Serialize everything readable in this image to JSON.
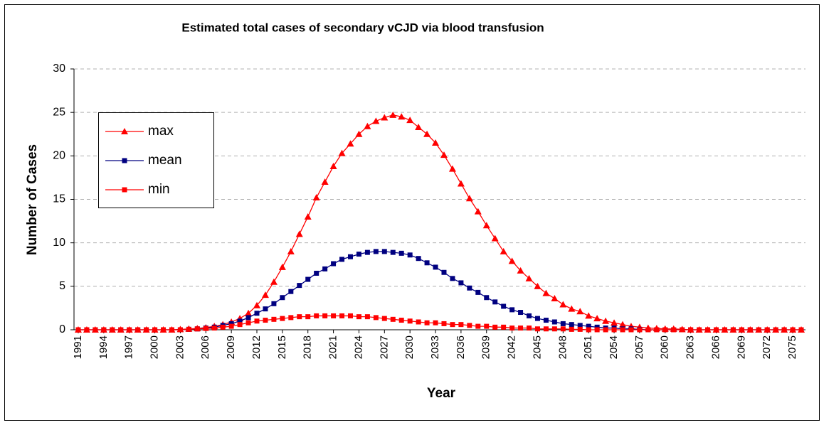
{
  "chart_data": {
    "type": "line",
    "title": "Estimated total cases of secondary vCJD via blood transfusion",
    "x_label": "Year",
    "y_label": "Number of Cases",
    "x": [
      1991,
      1992,
      1993,
      1994,
      1995,
      1996,
      1997,
      1998,
      1999,
      2000,
      2001,
      2002,
      2003,
      2004,
      2005,
      2006,
      2007,
      2008,
      2009,
      2010,
      2011,
      2012,
      2013,
      2014,
      2015,
      2016,
      2017,
      2018,
      2019,
      2020,
      2021,
      2022,
      2023,
      2024,
      2025,
      2026,
      2027,
      2028,
      2029,
      2030,
      2031,
      2032,
      2033,
      2034,
      2035,
      2036,
      2037,
      2038,
      2039,
      2040,
      2041,
      2042,
      2043,
      2044,
      2045,
      2046,
      2047,
      2048,
      2049,
      2050,
      2051,
      2052,
      2053,
      2054,
      2055,
      2056,
      2057,
      2058,
      2059,
      2060,
      2061,
      2062,
      2063,
      2064,
      2065,
      2066,
      2067,
      2068,
      2069,
      2070,
      2071,
      2072,
      2073,
      2074,
      2075,
      2076
    ],
    "xlim": [
      1990.5,
      2076.5
    ],
    "xticks": [
      1991,
      1994,
      1997,
      2000,
      2003,
      2006,
      2009,
      2012,
      2015,
      2018,
      2021,
      2024,
      2027,
      2030,
      2033,
      2036,
      2039,
      2042,
      2045,
      2048,
      2051,
      2054,
      2057,
      2060,
      2063,
      2066,
      2069,
      2072,
      2075
    ],
    "ylim": [
      0,
      30
    ],
    "yticks": [
      0,
      5,
      10,
      15,
      20,
      25,
      30
    ],
    "grid": true,
    "legend": "upper left",
    "series": [
      {
        "name": "max",
        "color": "#ff0000",
        "marker": "triangle",
        "values": [
          0,
          0,
          0,
          0,
          0,
          0,
          0,
          0,
          0,
          0,
          0,
          0,
          0.05,
          0.1,
          0.15,
          0.25,
          0.4,
          0.6,
          0.9,
          1.3,
          1.9,
          2.8,
          4,
          5.5,
          7.2,
          9,
          11,
          13,
          15.2,
          17,
          18.8,
          20.3,
          21.4,
          22.5,
          23.4,
          24,
          24.4,
          24.7,
          24.5,
          24.1,
          23.3,
          22.5,
          21.5,
          20.1,
          18.5,
          16.8,
          15.1,
          13.6,
          12,
          10.5,
          9,
          7.9,
          6.8,
          5.9,
          5,
          4.2,
          3.6,
          2.9,
          2.4,
          2.1,
          1.6,
          1.3,
          1.0,
          0.8,
          0.6,
          0.4,
          0.3,
          0.2,
          0.15,
          0.1,
          0.1,
          0.05,
          0,
          0,
          0,
          0,
          0,
          0,
          0,
          0,
          0,
          0,
          0,
          0,
          0,
          0
        ]
      },
      {
        "name": "mean",
        "color": "#000080",
        "marker": "square",
        "values": [
          0,
          0,
          0,
          0,
          0,
          0,
          0,
          0,
          0,
          0,
          0,
          0,
          0,
          0.05,
          0.1,
          0.2,
          0.3,
          0.5,
          0.7,
          1.0,
          1.4,
          1.9,
          2.4,
          3.0,
          3.7,
          4.4,
          5.1,
          5.8,
          6.5,
          7.0,
          7.6,
          8.1,
          8.4,
          8.7,
          8.9,
          9.0,
          9.0,
          8.9,
          8.8,
          8.6,
          8.2,
          7.7,
          7.2,
          6.6,
          5.9,
          5.4,
          4.8,
          4.3,
          3.7,
          3.2,
          2.7,
          2.3,
          2.0,
          1.6,
          1.3,
          1.1,
          0.9,
          0.7,
          0.6,
          0.5,
          0.4,
          0.3,
          0.2,
          0.2,
          0.1,
          0.1,
          0.05,
          0,
          0,
          0,
          0,
          0,
          0,
          0,
          0,
          0,
          0,
          0,
          0,
          0,
          0,
          0,
          0,
          0,
          0,
          0
        ]
      },
      {
        "name": "min",
        "color": "#ff0000",
        "marker": "square",
        "values": [
          0,
          0,
          0,
          0,
          0,
          0,
          0,
          0,
          0,
          0,
          0,
          0,
          0,
          0.05,
          0.1,
          0.15,
          0.2,
          0.3,
          0.4,
          0.6,
          0.8,
          1.0,
          1.1,
          1.2,
          1.3,
          1.4,
          1.5,
          1.5,
          1.6,
          1.6,
          1.6,
          1.6,
          1.6,
          1.5,
          1.5,
          1.4,
          1.3,
          1.2,
          1.1,
          1.0,
          0.9,
          0.8,
          0.8,
          0.7,
          0.6,
          0.6,
          0.5,
          0.4,
          0.4,
          0.3,
          0.3,
          0.2,
          0.2,
          0.2,
          0.1,
          0.1,
          0.1,
          0.1,
          0.05,
          0.05,
          0,
          0,
          0,
          0,
          0,
          0,
          0,
          0,
          0,
          0,
          0,
          0,
          0,
          0,
          0,
          0,
          0,
          0,
          0,
          0,
          0,
          0,
          0,
          0,
          0,
          0
        ]
      }
    ]
  }
}
